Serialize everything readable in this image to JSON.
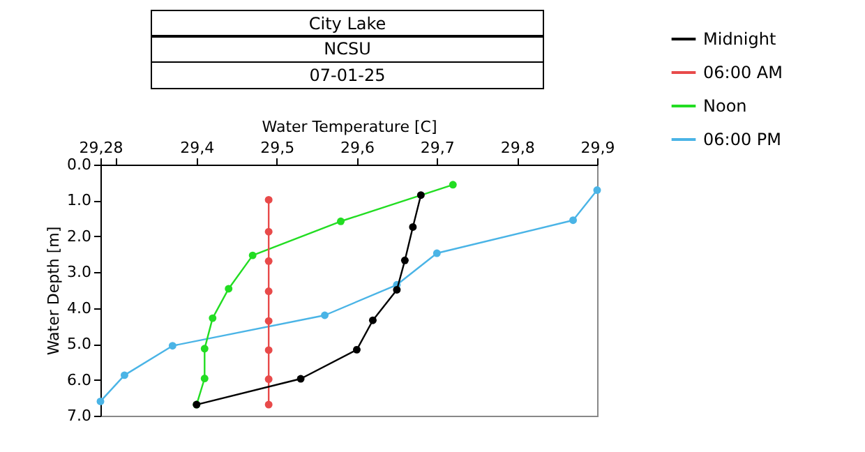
{
  "chart_data": {
    "type": "line",
    "title": "City Lake",
    "subtitle": "NCSU",
    "annotations": [
      "07-01-25"
    ],
    "xlabel": "Water Temperature [C]",
    "ylabel": "Water Depth [m]",
    "xlim": [
      29.28,
      29.9
    ],
    "xticks": [
      {
        "value": 29.28,
        "label": "29,28"
      },
      {
        "value": 29.3,
        "label": null
      },
      {
        "value": 29.4,
        "label": "29,4"
      },
      {
        "value": 29.5,
        "label": "29,5"
      },
      {
        "value": 29.6,
        "label": "29,6"
      },
      {
        "value": 29.7,
        "label": "29,7"
      },
      {
        "value": 29.8,
        "label": "29,8"
      },
      {
        "value": 29.9,
        "label": "29,9"
      }
    ],
    "ylim": [
      7,
      0
    ],
    "yticks": [
      {
        "value": 0,
        "label": "0.0"
      },
      {
        "value": 1,
        "label": "1.0"
      },
      {
        "value": 2,
        "label": "2.0"
      },
      {
        "value": 3,
        "label": "3.0"
      },
      {
        "value": 4,
        "label": "4.0"
      },
      {
        "value": 5,
        "label": "5.0"
      },
      {
        "value": 6,
        "label": "6.0"
      },
      {
        "value": 7,
        "label": "7.0"
      }
    ],
    "grid": false,
    "legend": "top right",
    "marker": "circle",
    "line_style": "solid",
    "series": [
      {
        "name": "Midnight",
        "color": "#000000",
        "x": [
          29.68,
          29.67,
          29.66,
          29.65,
          29.62,
          29.6,
          29.53,
          29.4
        ],
        "values": [
          0.85,
          1.74,
          2.67,
          3.49,
          4.34,
          5.16,
          5.97,
          6.69
        ]
      },
      {
        "name": "06:00 AM",
        "color": "#e84a4a",
        "x": [
          29.49,
          29.49,
          29.49,
          29.49,
          29.49,
          29.49,
          29.49,
          29.49
        ],
        "values": [
          0.98,
          1.87,
          2.69,
          3.53,
          4.36,
          5.17,
          5.98,
          6.69
        ]
      },
      {
        "name": "Noon",
        "color": "#22dd22",
        "x": [
          29.72,
          29.58,
          29.47,
          29.44,
          29.42,
          29.41,
          29.41,
          29.4
        ],
        "values": [
          0.56,
          1.58,
          2.53,
          3.46,
          4.28,
          5.13,
          5.96,
          6.69
        ]
      },
      {
        "name": "06:00 PM",
        "color": "#4ab4e6",
        "x": [
          29.9,
          29.87,
          29.7,
          29.65,
          29.56,
          29.37,
          29.31,
          29.28
        ],
        "values": [
          0.71,
          1.55,
          2.47,
          3.35,
          4.2,
          5.05,
          5.87,
          6.6
        ]
      }
    ]
  }
}
